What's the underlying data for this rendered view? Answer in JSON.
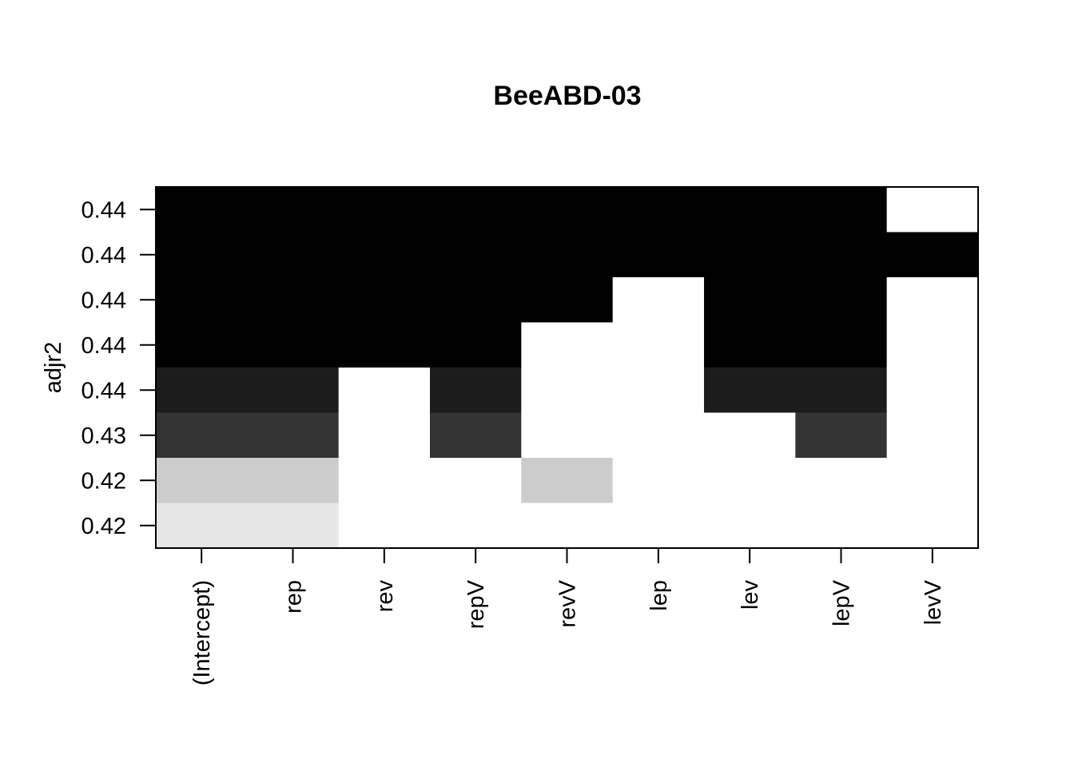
{
  "chart_data": {
    "type": "heatmap",
    "title": "BeeABD-03",
    "xlabel": "",
    "ylabel": "adjr2",
    "columns": [
      "(Intercept)",
      "rep",
      "rev",
      "repV",
      "revV",
      "lep",
      "lev",
      "lepV",
      "levV"
    ],
    "rows": [
      {
        "adjr2_label": "0.44",
        "included": [
          1,
          1,
          1,
          1,
          1,
          1,
          1,
          1,
          0
        ],
        "shade": "#000000"
      },
      {
        "adjr2_label": "0.44",
        "included": [
          1,
          1,
          1,
          1,
          1,
          1,
          1,
          1,
          1
        ],
        "shade": "#000000"
      },
      {
        "adjr2_label": "0.44",
        "included": [
          1,
          1,
          1,
          1,
          1,
          0,
          1,
          1,
          0
        ],
        "shade": "#000000"
      },
      {
        "adjr2_label": "0.44",
        "included": [
          1,
          1,
          1,
          1,
          0,
          0,
          1,
          1,
          0
        ],
        "shade": "#000000"
      },
      {
        "adjr2_label": "0.44",
        "included": [
          1,
          1,
          0,
          1,
          0,
          0,
          1,
          1,
          0
        ],
        "shade": "#1c1c1c"
      },
      {
        "adjr2_label": "0.43",
        "included": [
          1,
          1,
          0,
          1,
          0,
          0,
          0,
          1,
          0
        ],
        "shade": "#333333"
      },
      {
        "adjr2_label": "0.42",
        "included": [
          1,
          1,
          0,
          0,
          1,
          0,
          0,
          0,
          0
        ],
        "shade": "#cccccc"
      },
      {
        "adjr2_label": "0.42",
        "included": [
          1,
          1,
          0,
          0,
          0,
          0,
          0,
          0,
          0
        ],
        "shade": "#e6e6e6"
      }
    ],
    "empty_color": "#ffffff",
    "grid": false,
    "legend": "none"
  }
}
